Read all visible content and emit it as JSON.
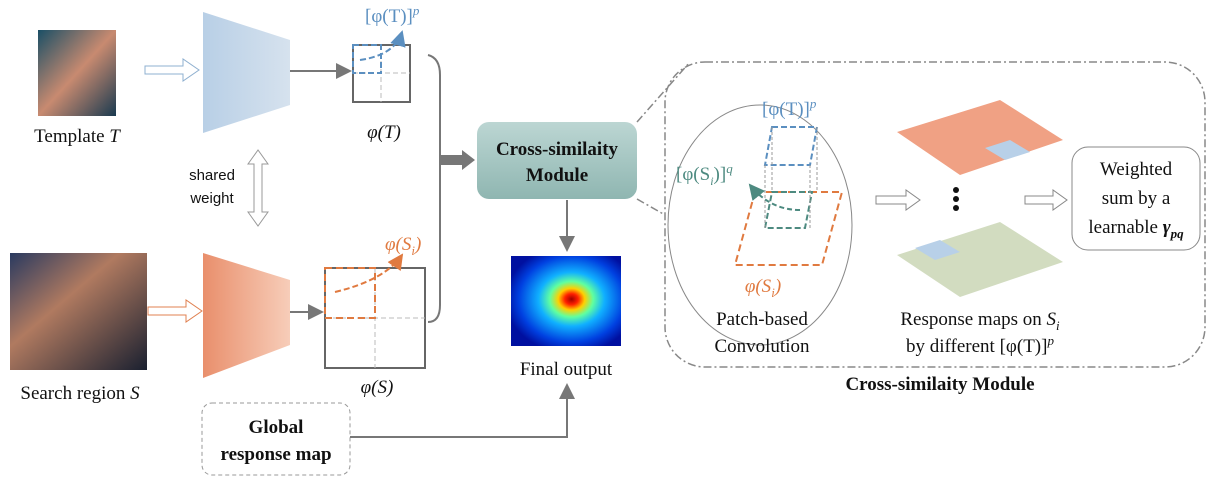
{
  "template_label": {
    "text": "Template ",
    "var": "T"
  },
  "search_label": {
    "text": "Search region ",
    "var": "S"
  },
  "shared_weight": [
    "shared",
    "weight"
  ],
  "phi_T_p_top": {
    "base": "[φ(T)]",
    "sup": "p"
  },
  "phi_T": "φ(T)",
  "phi_S": "φ(S)",
  "phi_S_i": {
    "base": "φ(S",
    "sub": "i",
    "end": ")"
  },
  "cross_module_box": [
    "Cross-similaity",
    "Module"
  ],
  "final_output": "Final output",
  "global_map": [
    "Global",
    "response map"
  ],
  "detail": {
    "phi_T_p": {
      "base": "[φ(T)]",
      "sup": "p"
    },
    "phi_S_i_q": {
      "base": "[φ(S",
      "sub": "i",
      "end": ")]",
      "sup": "q"
    },
    "phi_S_i": {
      "base": "φ(S",
      "sub": "i",
      "end": ")"
    },
    "patch_conv": [
      "Patch-based",
      "Convolution"
    ],
    "response_maps": {
      "line1": "Response maps on ",
      "var": "S",
      "sub": "i",
      "line2": "by different ",
      "base": "[φ(T)]",
      "sup": "p"
    },
    "weighted": [
      "Weighted",
      "sum by a",
      "learnable "
    ],
    "gamma": {
      "base": "γ",
      "sub": "pq"
    },
    "module_label": "Cross-similaity Module"
  }
}
